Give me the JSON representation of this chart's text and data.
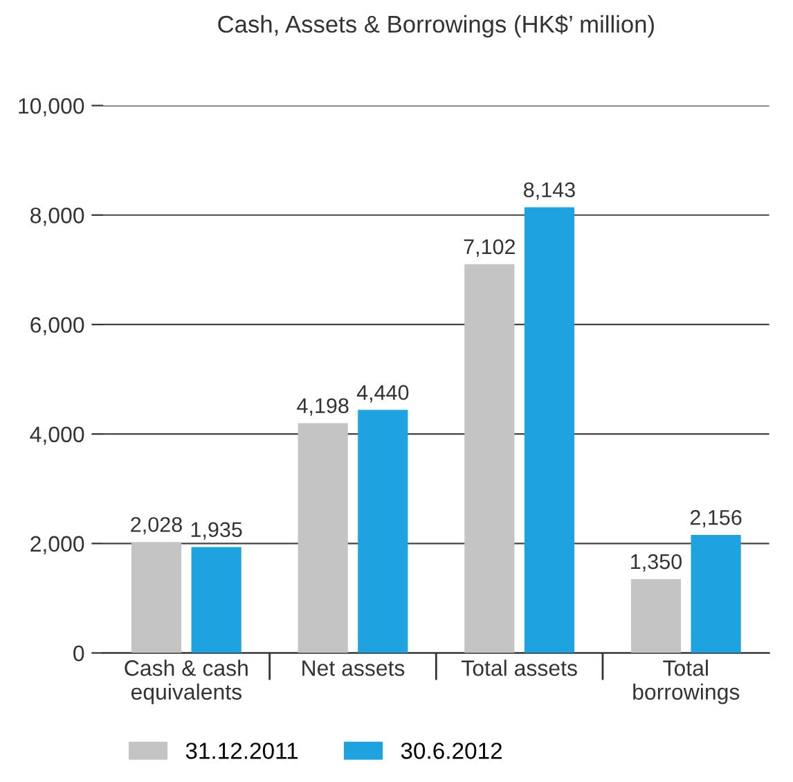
{
  "chart_data": {
    "type": "bar",
    "title": "Cash, Assets & Borrowings (HK$’ million)",
    "categories": [
      "Cash & cash\nequivalents",
      "Net assets",
      "Total assets",
      "Total\nborrowings"
    ],
    "series": [
      {
        "name": "31.12.2011",
        "color": "#c4c4c4",
        "values": [
          2028,
          4198,
          7102,
          1350
        ],
        "value_labels": [
          "2,028",
          "4,198",
          "7,102",
          "1,350"
        ]
      },
      {
        "name": "30.6.2012",
        "color": "#1fa3e0",
        "values": [
          1935,
          4440,
          8143,
          2156
        ],
        "value_labels": [
          "1,935",
          "4,440",
          "8,143",
          "2,156"
        ]
      }
    ],
    "ylim": [
      0,
      10000
    ],
    "yticks": [
      {
        "value": 0,
        "label": "0"
      },
      {
        "value": 2000,
        "label": "2,000"
      },
      {
        "value": 4000,
        "label": "4,000"
      },
      {
        "value": 6000,
        "label": "6,000"
      },
      {
        "value": 8000,
        "label": "8,000"
      },
      {
        "value": 10000,
        "label": "10,000"
      }
    ],
    "grid": "y",
    "legend": "bottom"
  }
}
